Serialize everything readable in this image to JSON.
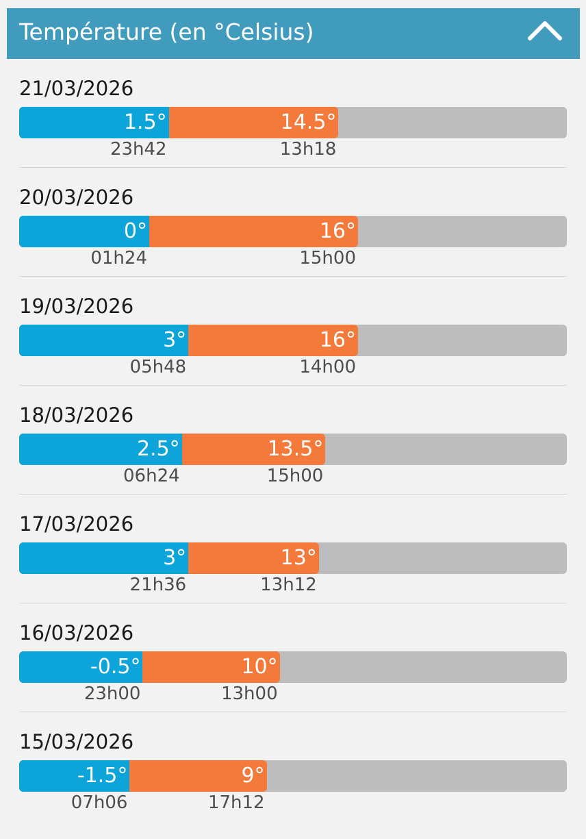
{
  "header": {
    "title": "Température (en °Celsius)",
    "toggle_icon": "chevron-up-icon"
  },
  "colors": {
    "header": "#419bbd",
    "min_bar": "#0da4d9",
    "max_bar": "#f47a3c",
    "track": "#bdbdbd"
  },
  "scale_max": 32,
  "days": [
    {
      "date": "21/03/2026",
      "min": 1.5,
      "min_label": "1.5°",
      "min_time": "23h42",
      "max": 14.5,
      "max_label": "14.5°",
      "max_time": "13h18"
    },
    {
      "date": "20/03/2026",
      "min": 0,
      "min_label": "0°",
      "min_time": "01h24",
      "max": 16,
      "max_label": "16°",
      "max_time": "15h00"
    },
    {
      "date": "19/03/2026",
      "min": 3,
      "min_label": "3°",
      "min_time": "05h48",
      "max": 16,
      "max_label": "16°",
      "max_time": "14h00"
    },
    {
      "date": "18/03/2026",
      "min": 2.5,
      "min_label": "2.5°",
      "min_time": "06h24",
      "max": 13.5,
      "max_label": "13.5°",
      "max_time": "15h00"
    },
    {
      "date": "17/03/2026",
      "min": 3,
      "min_label": "3°",
      "min_time": "21h36",
      "max": 13,
      "max_label": "13°",
      "max_time": "13h12"
    },
    {
      "date": "16/03/2026",
      "min": -0.5,
      "min_label": "-0.5°",
      "min_time": "23h00",
      "max": 10,
      "max_label": "10°",
      "max_time": "13h00"
    },
    {
      "date": "15/03/2026",
      "min": -1.5,
      "min_label": "-1.5°",
      "min_time": "07h06",
      "max": 9,
      "max_label": "9°",
      "max_time": "17h12"
    }
  ]
}
